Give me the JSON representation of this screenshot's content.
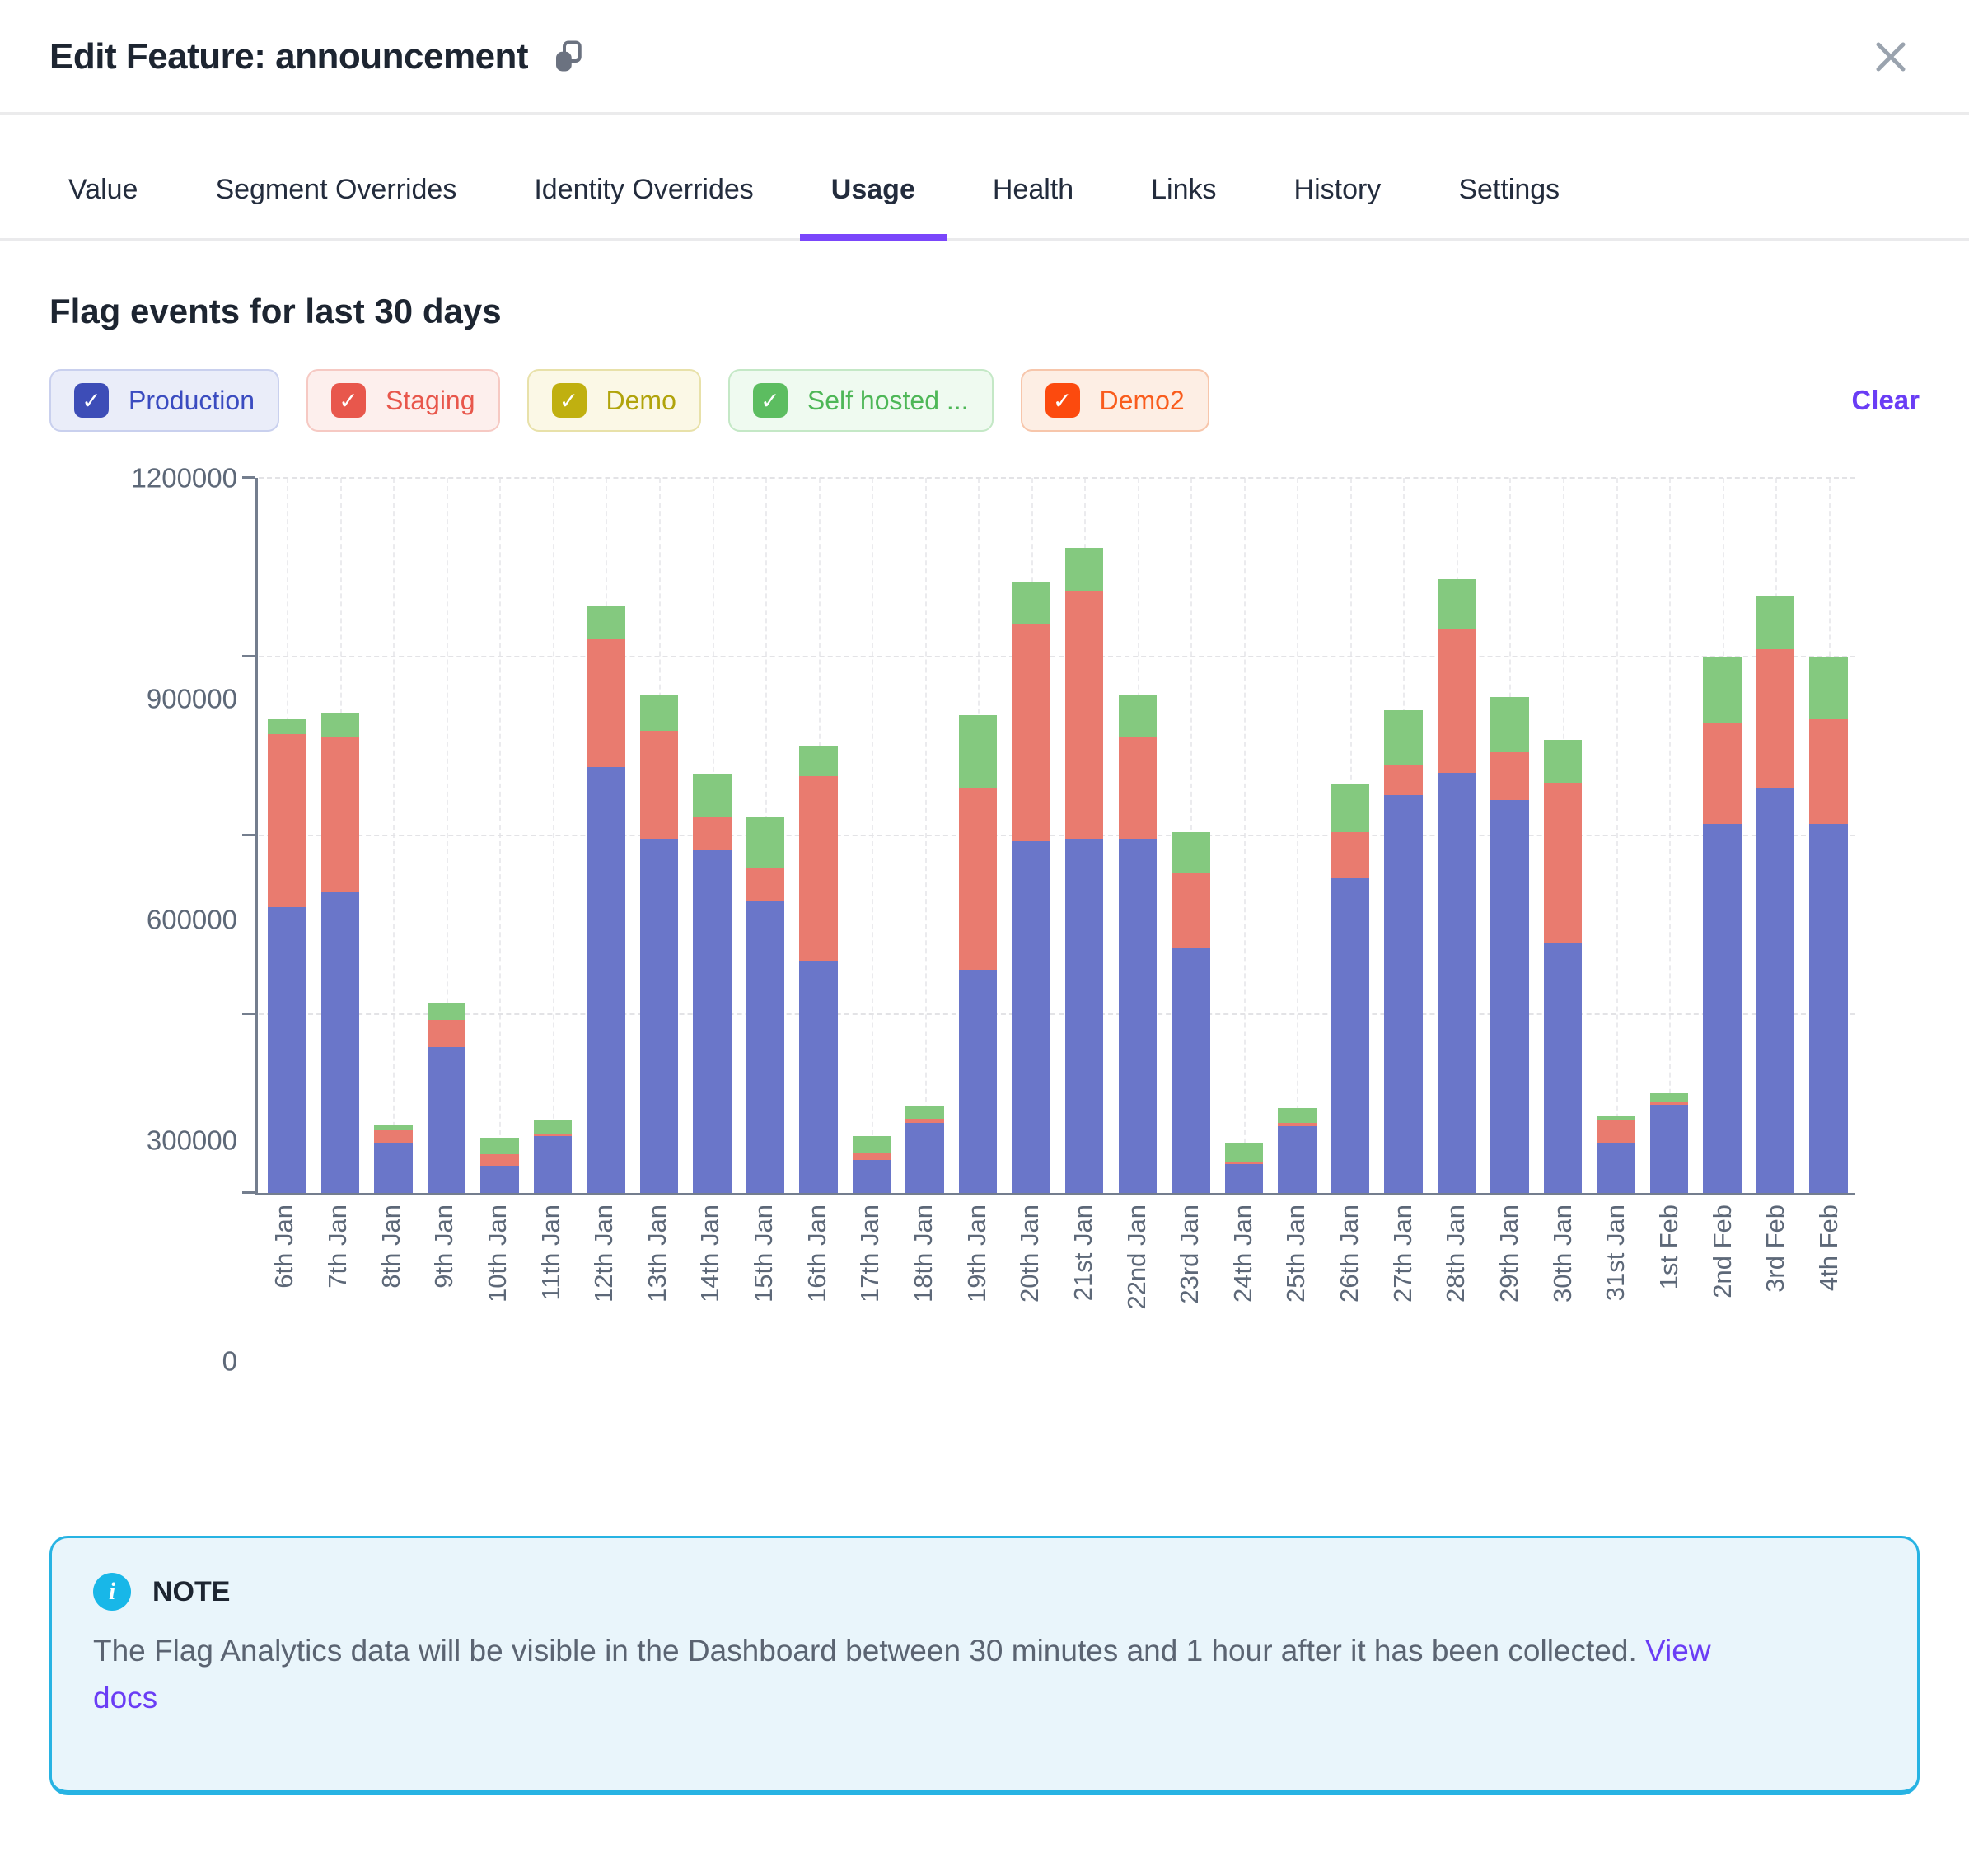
{
  "modal": {
    "title": "Edit Feature: announcement"
  },
  "tabs": [
    {
      "label": "Value",
      "active": false
    },
    {
      "label": "Segment Overrides",
      "active": false
    },
    {
      "label": "Identity Overrides",
      "active": false
    },
    {
      "label": "Usage",
      "active": true
    },
    {
      "label": "Health",
      "active": false
    },
    {
      "label": "Links",
      "active": false
    },
    {
      "label": "History",
      "active": false
    },
    {
      "label": "Settings",
      "active": false
    }
  ],
  "usage": {
    "heading": "Flag events for last 30 days",
    "clear_label": "Clear",
    "accent_color": "#7a46fb"
  },
  "legend": [
    {
      "label": "Production",
      "checked": true,
      "color": "#3d4db7",
      "text_color": "#3b4cc0",
      "bg": "#eaedf9",
      "border": "#c9d0ee"
    },
    {
      "label": "Staging",
      "checked": true,
      "color": "#e8574c",
      "text_color": "#e8574c",
      "bg": "#fdefed",
      "border": "#f6c9c3"
    },
    {
      "label": "Demo",
      "checked": true,
      "color": "#c0b010",
      "text_color": "#b1a40c",
      "bg": "#fbf8e6",
      "border": "#e8e1a9"
    },
    {
      "label": "Self hosted ...",
      "checked": true,
      "color": "#5cbd60",
      "text_color": "#4eb757",
      "bg": "#effaf0",
      "border": "#c4e8c6"
    },
    {
      "label": "Demo2",
      "checked": true,
      "color": "#fc4a0e",
      "text_color": "#f95c1d",
      "bg": "#fdeee4",
      "border": "#f7c6ab"
    }
  ],
  "chart_data": {
    "type": "bar",
    "stacked": true,
    "title": "Flag events for last 30 days",
    "xlabel": "",
    "ylabel": "",
    "ylim": [
      0,
      1200000
    ],
    "yticks": [
      0,
      300000,
      600000,
      900000,
      1200000
    ],
    "grid": true,
    "legend_position": "top",
    "categories": [
      "6th Jan",
      "7th Jan",
      "8th Jan",
      "9th Jan",
      "10th Jan",
      "11th Jan",
      "12th Jan",
      "13th Jan",
      "14th Jan",
      "15th Jan",
      "16th Jan",
      "17th Jan",
      "18th Jan",
      "19th Jan",
      "20th Jan",
      "21st Jan",
      "22nd Jan",
      "23rd Jan",
      "24th Jan",
      "25th Jan",
      "26th Jan",
      "27th Jan",
      "28th Jan",
      "29th Jan",
      "30th Jan",
      "31st Jan",
      "1st Feb",
      "2nd Feb",
      "3rd Feb",
      "4th Feb"
    ],
    "series": [
      {
        "name": "Production",
        "color": "#6a76c9",
        "values": [
          480000,
          505000,
          85000,
          245000,
          45000,
          95000,
          715000,
          595000,
          575000,
          490000,
          390000,
          55000,
          118000,
          375000,
          590000,
          595000,
          595000,
          410000,
          48000,
          112000,
          528000,
          668000,
          705000,
          660000,
          420000,
          85000,
          148000,
          620000,
          680000,
          620000
        ]
      },
      {
        "name": "Staging",
        "color": "#e97b6f",
        "values": [
          290000,
          260000,
          20000,
          45000,
          20000,
          5000,
          215000,
          180000,
          55000,
          55000,
          310000,
          12000,
          6000,
          305000,
          365000,
          415000,
          170000,
          128000,
          5000,
          6000,
          78000,
          50000,
          240000,
          80000,
          268000,
          38000,
          4000,
          168000,
          232000,
          175000
        ]
      },
      {
        "name": "Self hosted ...",
        "color": "#84c97f",
        "values": [
          25000,
          40000,
          10000,
          30000,
          28000,
          22000,
          55000,
          62000,
          72000,
          85000,
          50000,
          28000,
          22000,
          122000,
          70000,
          72000,
          72000,
          68000,
          32000,
          25000,
          80000,
          92000,
          85000,
          92000,
          72000,
          7000,
          16000,
          110000,
          90000,
          105000
        ]
      }
    ]
  },
  "note": {
    "label": "NOTE",
    "body": "The Flag Analytics data will be visible in the Dashboard between 30 minutes and 1 hour after it has been collected.",
    "link_label": "View docs"
  }
}
